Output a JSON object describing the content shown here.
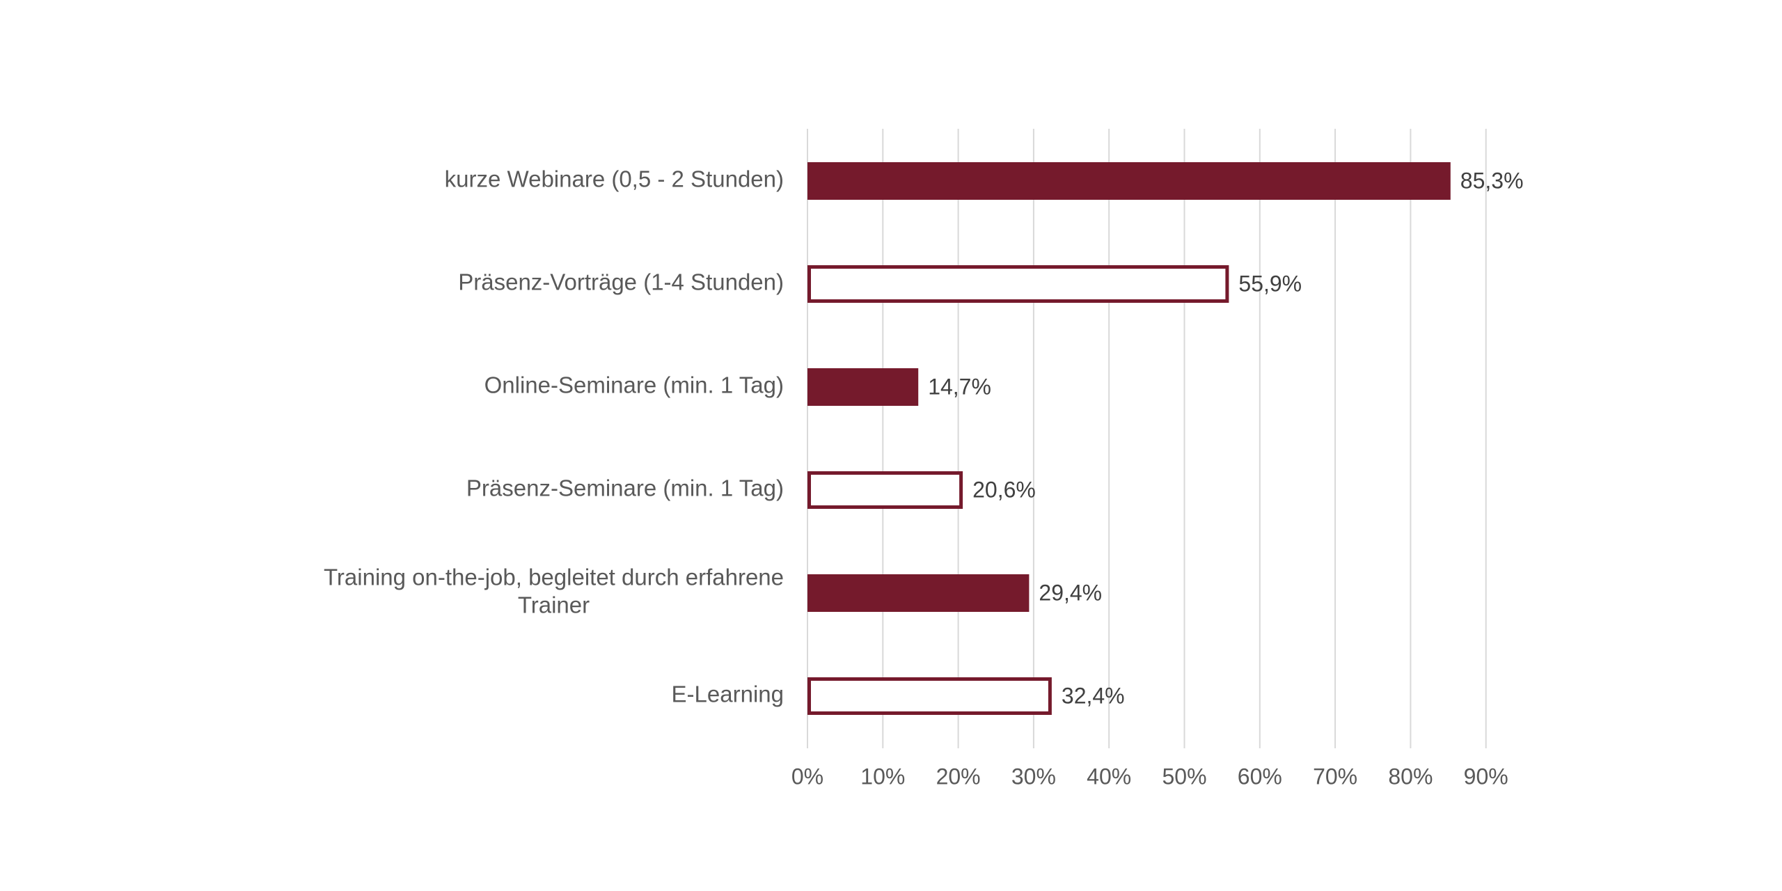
{
  "chart_data": {
    "type": "bar",
    "orientation": "horizontal",
    "categories": [
      "kurze Webinare (0,5 - 2 Stunden)",
      "Präsenz-Vorträge (1-4 Stunden)",
      "Online-Seminare (min. 1 Tag)",
      "Präsenz-Seminare (min. 1 Tag)",
      "Training on-the-job, begleitet durch erfahrene Trainer",
      "E-Learning"
    ],
    "category_lines": [
      [
        "kurze Webinare (0,5 - 2 Stunden)"
      ],
      [
        "Präsenz-Vorträge (1-4 Stunden)"
      ],
      [
        "Online-Seminare (min. 1 Tag)"
      ],
      [
        "Präsenz-Seminare (min. 1 Tag)"
      ],
      [
        "Training on-the-job, begleitet durch erfahrene",
        "Trainer"
      ],
      [
        "E-Learning"
      ]
    ],
    "values": [
      85.3,
      55.9,
      14.7,
      20.6,
      29.4,
      32.4
    ],
    "data_labels": [
      "85,3%",
      "55,9%",
      "14,7%",
      "20,6%",
      "29,4%",
      "32,4%"
    ],
    "bar_styles": [
      "filled",
      "outline",
      "filled",
      "outline",
      "filled",
      "outline"
    ],
    "xlim": [
      0,
      90
    ],
    "xticks": [
      0,
      10,
      20,
      30,
      40,
      50,
      60,
      70,
      80,
      90
    ],
    "xtick_labels": [
      "0%",
      "10%",
      "20%",
      "30%",
      "40%",
      "50%",
      "60%",
      "70%",
      "80%",
      "90%"
    ],
    "grid": "vertical",
    "legend": "none",
    "title": "",
    "xlabel": "",
    "ylabel": "",
    "colors": {
      "bar": "#751a2c",
      "outline_fill": "#ffffff",
      "grid": "#d9d9d9",
      "label": "#595959",
      "data_label": "#404040"
    }
  }
}
